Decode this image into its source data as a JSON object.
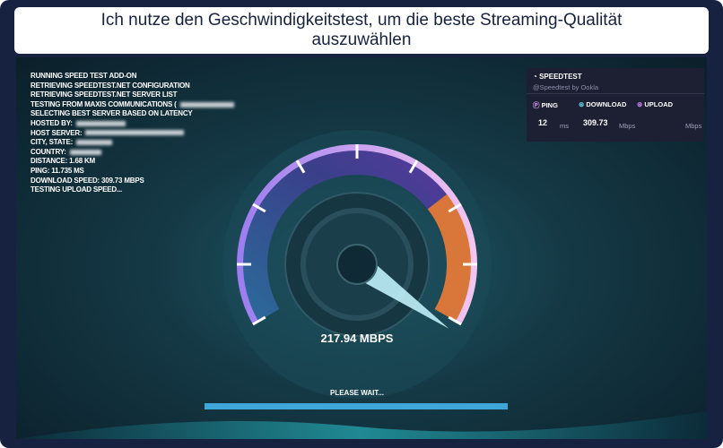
{
  "header": {
    "title": "Ich nutze den Geschwindigkeitstest, um die beste Streaming-Qualität auszuwählen"
  },
  "log": {
    "lines": [
      "RUNNING SPEED TEST ADD-ON",
      "RETRIEVING SPEEDTEST.NET CONFIGURATION",
      "RETRIEVING SPEEDTEST.NET SERVER LIST",
      "TESTING FROM MAXIS COMMUNICATIONS (",
      "SELECTING BEST SERVER BASED ON LATENCY",
      "HOSTED BY:",
      "HOST SERVER:",
      "CITY, STATE:",
      "COUNTRY:",
      "DISTANCE: 1.68 KM",
      "PING: 11.735 MS",
      "DOWNLOAD SPEED: 309.73 MBPS",
      "TESTING UPLOAD SPEED..."
    ]
  },
  "gauge": {
    "speed": "217.94 MBPS"
  },
  "status": "PLEASE WAIT...",
  "panel": {
    "title": "SPEEDTEST",
    "subtitle": "@Speedtest by Ookla",
    "ping_label": "PING",
    "download_label": "DOWNLOAD",
    "upload_label": "UPLOAD",
    "ping_value": "12",
    "ping_unit": "ms",
    "download_value": "309.73",
    "download_unit": "Mbps",
    "upload_unit": "Mbps"
  }
}
